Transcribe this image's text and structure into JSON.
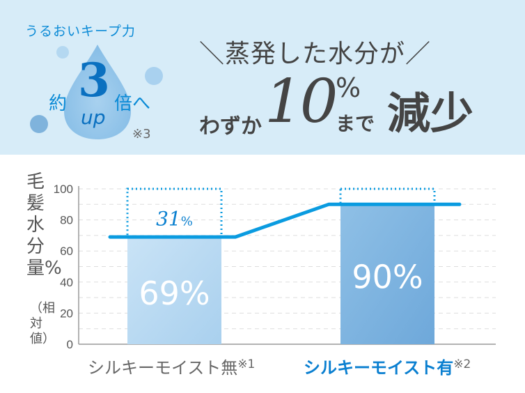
{
  "header": {
    "left_caption": "うるおいキープ力",
    "left_prefix": "約",
    "left_number": "3",
    "left_suffix": "倍へ",
    "left_up": "up",
    "left_note": "※3",
    "headline_top": "＼蒸発した水分が／",
    "headline_pre": "わずか",
    "headline_number": "10",
    "headline_percent": "%",
    "headline_made": "まで",
    "headline_post": "減少"
  },
  "colors": {
    "accent": "#0a8ad6",
    "band": "#d7ecf8",
    "bar_light": "#bcdcf3",
    "bar_dark": "#7fb6e2",
    "line": "#0a9be0",
    "text_gray": "#555555"
  },
  "chart_data": {
    "type": "bar",
    "ylabel": "毛髪水分量%（相対値）",
    "ylabel_main": "毛髪水分量%",
    "ylabel_sub": "（相対値）",
    "ylim": [
      0,
      100
    ],
    "yticks": [
      0,
      20,
      40,
      60,
      80,
      100
    ],
    "grid": true,
    "categories": [
      "シルキーモイスト無",
      "シルキーモイスト有"
    ],
    "category_notes": [
      "※1",
      "※2"
    ],
    "values": [
      69,
      90
    ],
    "value_labels": [
      "69%",
      "90%"
    ],
    "gap_annotation": {
      "value": "31",
      "unit": "%"
    }
  }
}
